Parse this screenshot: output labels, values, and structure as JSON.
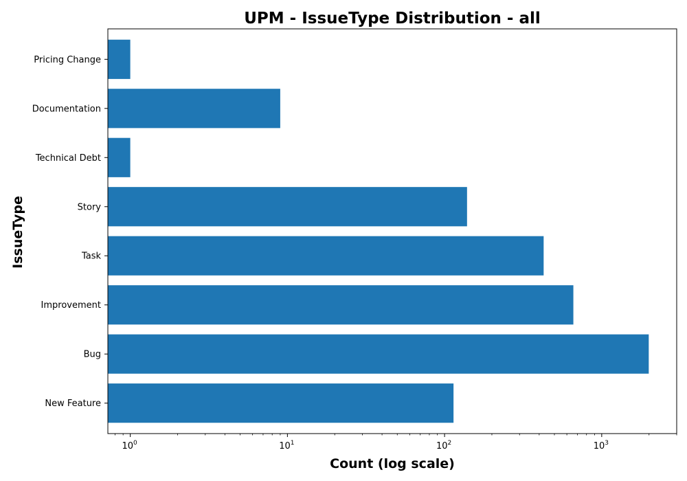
{
  "chart_data": {
    "type": "bar",
    "orientation": "horizontal",
    "title": "UPM - IssueType Distribution - all",
    "xlabel": "Count (log scale)",
    "ylabel": "IssueType",
    "x_scale": "log",
    "xlim": [
      0.72,
      3000
    ],
    "x_ticks": [
      {
        "value": 1,
        "base": "10",
        "exp": "0"
      },
      {
        "value": 10,
        "base": "10",
        "exp": "1"
      },
      {
        "value": 100,
        "base": "10",
        "exp": "2"
      },
      {
        "value": 1000,
        "base": "10",
        "exp": "3"
      }
    ],
    "categories": [
      "New Feature",
      "Bug",
      "Improvement",
      "Task",
      "Story",
      "Technical Debt",
      "Documentation",
      "Pricing Change"
    ],
    "values": [
      114,
      1992,
      660,
      427,
      139,
      1,
      9,
      1
    ],
    "colors": {
      "bar": "#1f77b4"
    },
    "grid": false,
    "legend": "none"
  }
}
